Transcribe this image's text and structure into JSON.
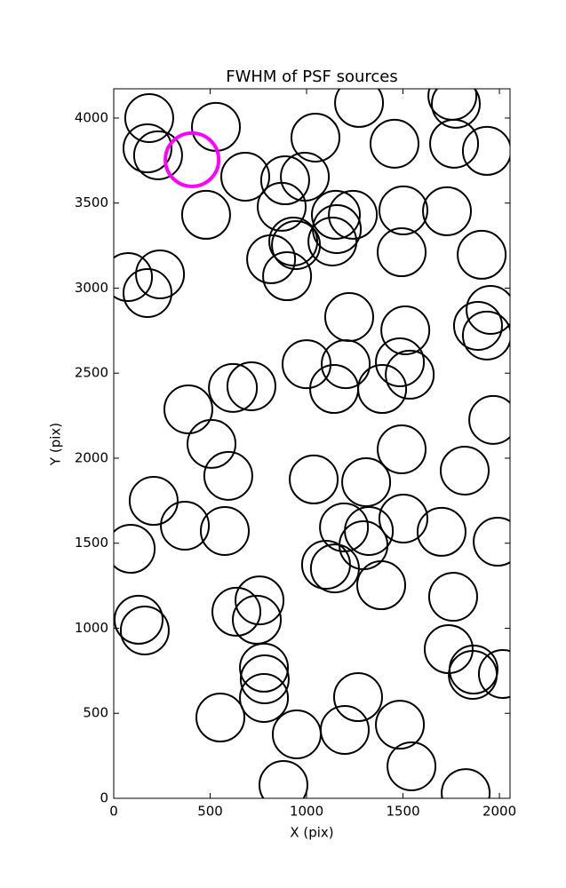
{
  "chart_data": {
    "type": "scatter",
    "title": "FWHM of PSF sources",
    "x_label": "X (pix)",
    "y_label": "Y (pix)",
    "xlim": [
      0,
      2055
    ],
    "ylim": [
      0,
      4172
    ],
    "xticks": [
      0,
      500,
      1000,
      1500,
      2000
    ],
    "yticks": [
      0,
      500,
      1000,
      1500,
      2000,
      2500,
      3000,
      3500,
      4000
    ],
    "marker": "open-circle",
    "series": [
      {
        "color": "#000000",
        "x": [
          184,
          175,
          230,
          530,
          1272,
          1756,
          1774,
          1046,
          1456,
          1765,
          1935,
          682,
          889,
          991,
          871,
          479,
          1152,
          1157,
          1240,
          1502,
          1728,
          1134,
          931,
          945,
          1493,
          1908,
          816,
          899,
          74,
          240,
          175,
          1221,
          1954,
          1889,
          1935,
          1512,
          1000,
          1203,
          1484,
          1535,
          1143,
          1392,
          618,
          714,
          387,
          1968,
          507,
          1493,
          594,
          1820,
          1037,
          1309,
          207,
          1502,
          369,
          576,
          1194,
          1323,
          1700,
          1991,
          1295,
          88,
          1101,
          1147,
          1387,
          756,
          1760,
          636,
          742,
          129,
          161,
          779,
          783,
          1737,
          1866,
          1862,
          2018,
          779,
          1267,
          553,
          949,
          1198,
          1484,
          1544,
          880,
          1825
        ],
        "values": [
          4000,
          3822,
          3781,
          3948,
          4089,
          4131,
          4084,
          3885,
          3849,
          3849,
          3807,
          3655,
          3634,
          3655,
          3478,
          3431,
          3431,
          3347,
          3431,
          3457,
          3452,
          3274,
          3274,
          3253,
          3211,
          3196,
          3170,
          3070,
          3065,
          3081,
          2971,
          2830,
          2872,
          2778,
          2721,
          2752,
          2553,
          2553,
          2564,
          2491,
          2407,
          2407,
          2413,
          2423,
          2287,
          2225,
          2084,
          2052,
          1896,
          1927,
          1875,
          1859,
          1749,
          1645,
          1603,
          1572,
          1593,
          1572,
          1567,
          1509,
          1488,
          1467,
          1373,
          1352,
          1253,
          1164,
          1185,
          1097,
          1050,
          1050,
          987,
          768,
          700,
          877,
          757,
          726,
          731,
          590,
          595,
          475,
          376,
          402,
          433,
          188,
          78,
          31
        ]
      },
      {
        "color": "#ff00ff",
        "x": [
          406
        ],
        "values": [
          3755
        ]
      }
    ]
  }
}
